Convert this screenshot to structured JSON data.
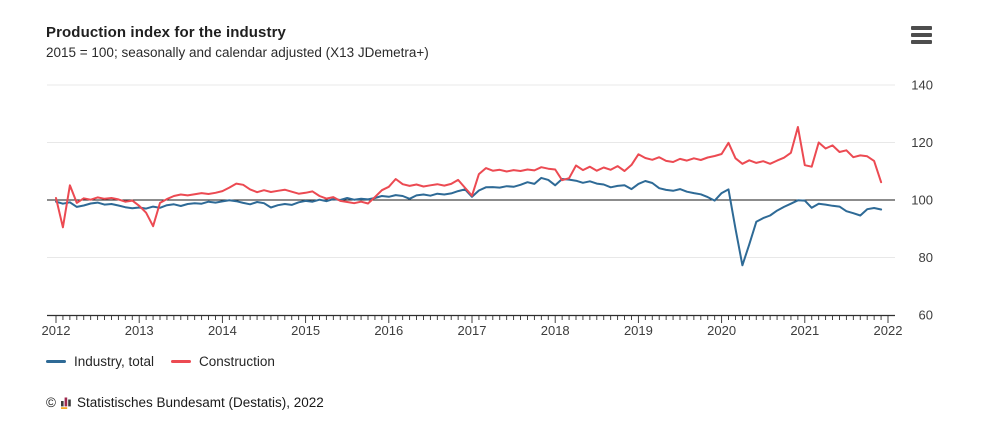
{
  "header": {
    "title": "Production index for the industry",
    "subtitle": "2015 = 100; seasonally and calendar adjusted (X13 JDemetra+)"
  },
  "menu": {
    "icon": "hamburger-menu",
    "tooltip_label": "Chart context menu"
  },
  "chart_data": {
    "type": "line",
    "title": "Production index for the industry",
    "unit_note": "2015 = 100",
    "x_start": "2012-01",
    "x_frequency": "monthly",
    "x_tick_labels": [
      "2012",
      "2013",
      "2014",
      "2015",
      "2016",
      "2017",
      "2018",
      "2019",
      "2020",
      "2021",
      "2022"
    ],
    "ylim": [
      60,
      140
    ],
    "y_ticks": [
      60,
      80,
      100,
      120,
      140
    ],
    "reference_line_y": 100,
    "grid": true,
    "legend_position": "bottom-left",
    "colors": {
      "grid": "#e8e8e8",
      "reference_line": "#1a1a1a",
      "axis": "#2e2e2e",
      "tick_label": "#3d3d3d"
    },
    "series": [
      {
        "name": "Industry, total",
        "color": "#2e6a96",
        "values": [
          99.4,
          98.7,
          99.2,
          97.6,
          98.1,
          98.8,
          99.1,
          98.4,
          98.6,
          98.1,
          97.5,
          97.1,
          97.4,
          97.0,
          97.7,
          97.3,
          98.2,
          98.5,
          97.9,
          98.6,
          98.9,
          98.7,
          99.4,
          99.1,
          99.5,
          99.9,
          99.6,
          99.0,
          98.5,
          99.3,
          98.9,
          97.4,
          98.2,
          98.6,
          98.3,
          99.2,
          99.7,
          99.4,
          100.1,
          99.6,
          100.3,
          100.0,
          100.7,
          100.1,
          100.4,
          100.2,
          100.7,
          101.4,
          101.1,
          101.7,
          101.4,
          100.4,
          101.6,
          101.9,
          101.5,
          102.2,
          101.9,
          102.3,
          103.1,
          103.7,
          101.1,
          103.3,
          104.4,
          104.5,
          104.3,
          104.8,
          104.6,
          105.3,
          106.2,
          105.6,
          107.7,
          107.0,
          105.1,
          107.3,
          107.1,
          106.7,
          106.0,
          106.5,
          105.7,
          105.4,
          104.4,
          104.9,
          105.1,
          103.8,
          105.6,
          106.6,
          105.9,
          104.1,
          103.5,
          103.2,
          103.8,
          102.9,
          102.4,
          102.0,
          101.0,
          99.8,
          102.4,
          103.7,
          90.0,
          77.3,
          84.6,
          92.4,
          93.7,
          94.6,
          96.3,
          97.6,
          98.7,
          99.9,
          99.8,
          97.3,
          98.7,
          98.4,
          98.0,
          97.7,
          96.1,
          95.4,
          94.6,
          96.8,
          97.2,
          96.7
        ]
      },
      {
        "name": "Construction",
        "color": "#ec4a52",
        "values": [
          100.7,
          90.5,
          105.1,
          99.0,
          100.6,
          100.1,
          100.9,
          100.4,
          100.7,
          100.2,
          99.4,
          99.8,
          98.0,
          95.6,
          90.9,
          99.0,
          100.3,
          101.4,
          101.9,
          101.6,
          102.0,
          102.4,
          102.1,
          102.5,
          103.1,
          104.3,
          105.7,
          105.3,
          103.7,
          102.7,
          103.4,
          102.8,
          103.2,
          103.6,
          102.9,
          102.2,
          102.5,
          103.0,
          101.4,
          100.5,
          101.0,
          99.7,
          99.3,
          98.9,
          99.4,
          98.8,
          101.0,
          103.4,
          104.6,
          107.3,
          105.5,
          104.9,
          105.4,
          104.7,
          105.1,
          105.5,
          105.0,
          105.6,
          107.0,
          104.2,
          101.5,
          109.0,
          111.1,
          110.2,
          110.5,
          109.9,
          110.4,
          110.1,
          110.6,
          110.3,
          111.4,
          110.9,
          110.6,
          106.9,
          107.6,
          112.0,
          110.4,
          111.6,
          110.2,
          111.3,
          110.5,
          111.8,
          110.1,
          112.2,
          115.9,
          114.6,
          114.0,
          114.9,
          113.6,
          113.2,
          114.3,
          113.7,
          114.5,
          113.9,
          114.8,
          115.3,
          116.0,
          119.9,
          114.5,
          112.6,
          113.8,
          112.9,
          113.5,
          112.6,
          113.7,
          114.7,
          116.4,
          125.4,
          112.1,
          111.6,
          120.0,
          117.9,
          119.0,
          116.7,
          117.3,
          114.9,
          115.5,
          115.2,
          113.6,
          106.2
        ]
      }
    ]
  },
  "footer": {
    "copyright": "©",
    "source": "Statistisches Bundesamt (Destatis), 2022"
  }
}
